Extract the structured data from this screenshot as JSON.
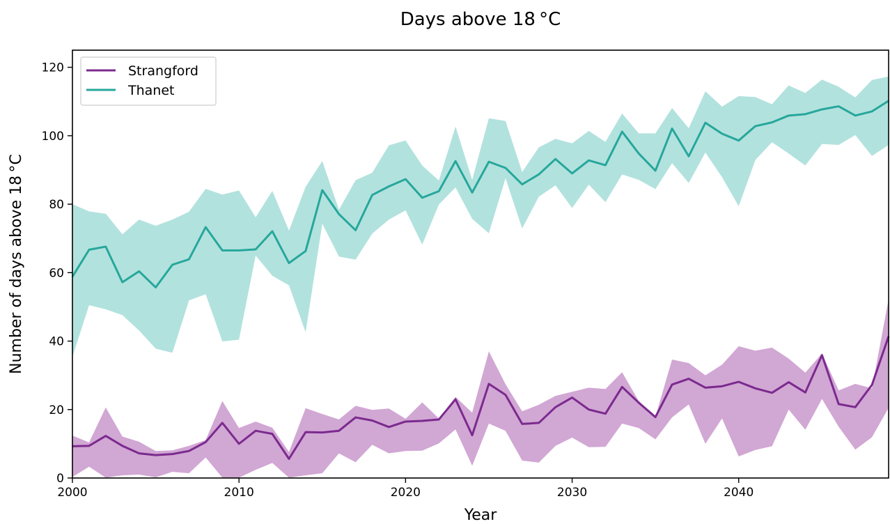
{
  "chart_data": {
    "type": "line",
    "title": "Days above 18 °C",
    "xlabel": "Year",
    "ylabel": "Number of days above 18 °C",
    "xlim": [
      2000,
      2049
    ],
    "ylim": [
      0,
      125
    ],
    "xticks": [
      2000,
      2010,
      2020,
      2030,
      2040
    ],
    "yticks": [
      0,
      20,
      40,
      60,
      80,
      100,
      120
    ],
    "grid": false,
    "legend_position": "upper-left",
    "x": [
      2000,
      2001,
      2002,
      2003,
      2004,
      2005,
      2006,
      2007,
      2008,
      2009,
      2010,
      2011,
      2012,
      2013,
      2014,
      2015,
      2016,
      2017,
      2018,
      2019,
      2020,
      2021,
      2022,
      2023,
      2024,
      2025,
      2026,
      2027,
      2028,
      2029,
      2030,
      2031,
      2032,
      2033,
      2034,
      2035,
      2036,
      2037,
      2038,
      2039,
      2040,
      2041,
      2042,
      2043,
      2044,
      2045,
      2046,
      2047,
      2048,
      2049
    ],
    "series": [
      {
        "name": "Strangford",
        "color": "#7b2a8e",
        "band_color": "#b26cb8",
        "values": [
          9.3,
          9.4,
          12.3,
          9.4,
          7.2,
          6.7,
          7.0,
          7.9,
          10.5,
          16.1,
          10.0,
          13.8,
          12.9,
          5.6,
          13.4,
          13.3,
          13.8,
          17.7,
          16.8,
          14.9,
          16.5,
          16.7,
          17.1,
          23.0,
          12.5,
          27.5,
          24.3,
          15.8,
          16.1,
          20.7,
          23.5,
          20.0,
          18.8,
          26.6,
          22.0,
          17.8,
          27.3,
          29.0,
          26.4,
          26.8,
          28.1,
          26.2,
          24.9,
          28.0,
          25.0,
          35.9,
          21.6,
          20.7,
          27.2,
          41.4
        ],
        "lower": [
          0.3,
          3.3,
          0.1,
          0.8,
          1.0,
          0.2,
          1.8,
          1.4,
          6.0,
          0.1,
          0.1,
          2.4,
          4.4,
          0.1,
          0.8,
          1.4,
          7.2,
          4.6,
          9.7,
          7.2,
          7.9,
          8.0,
          10.1,
          14.2,
          3.6,
          15.9,
          13.8,
          5.1,
          4.5,
          9.4,
          11.8,
          9.0,
          9.1,
          15.9,
          14.6,
          11.3,
          17.7,
          21.5,
          10.0,
          17.4,
          6.3,
          8.2,
          9.3,
          20.0,
          14.1,
          23.1,
          15.0,
          8.3,
          11.9,
          20.5
        ],
        "upper": [
          12.4,
          10.4,
          20.6,
          12.1,
          10.6,
          7.9,
          8.1,
          9.4,
          11.1,
          22.5,
          14.6,
          16.5,
          14.7,
          7.6,
          20.4,
          18.7,
          17.1,
          21.1,
          19.9,
          20.3,
          17.3,
          22.1,
          17.4,
          23.7,
          19.1,
          37.0,
          27.4,
          19.5,
          21.4,
          24.0,
          25.2,
          26.4,
          26.0,
          30.9,
          22.5,
          17.9,
          34.6,
          33.6,
          30.0,
          33.1,
          38.5,
          37.2,
          38.1,
          34.9,
          30.8,
          36.4,
          25.6,
          27.5,
          26.2,
          52.3
        ]
      },
      {
        "name": "Thanet",
        "color": "#26a79b",
        "band_color": "#7fcfc8",
        "values": [
          58.8,
          66.7,
          67.6,
          57.2,
          60.4,
          55.7,
          62.3,
          63.9,
          73.3,
          66.5,
          66.5,
          66.8,
          72.1,
          62.8,
          66.3,
          84.1,
          77.1,
          72.4,
          82.7,
          85.2,
          87.3,
          81.9,
          83.8,
          92.6,
          83.4,
          92.4,
          90.6,
          85.8,
          88.7,
          93.2,
          89.0,
          92.8,
          91.4,
          101.2,
          94.8,
          89.8,
          102.1,
          94.0,
          103.8,
          100.6,
          98.6,
          102.8,
          103.9,
          105.9,
          106.3,
          107.7,
          108.6,
          105.9,
          107.1,
          110.2
        ],
        "lower": [
          35.4,
          50.5,
          49.3,
          47.6,
          43.1,
          37.8,
          36.6,
          51.9,
          53.7,
          39.9,
          40.4,
          65.0,
          59.1,
          56.3,
          42.6,
          74.3,
          64.7,
          63.8,
          71.4,
          75.5,
          78.2,
          68.2,
          79.9,
          84.9,
          75.7,
          71.5,
          87.6,
          72.9,
          82.2,
          85.5,
          78.9,
          85.7,
          80.6,
          88.7,
          87.1,
          84.4,
          92.0,
          86.2,
          95.1,
          87.9,
          79.4,
          92.9,
          98.1,
          94.8,
          91.3,
          97.6,
          97.3,
          100.2,
          94.1,
          97.3
        ],
        "upper": [
          80.0,
          77.9,
          77.2,
          71.2,
          75.5,
          73.7,
          75.5,
          77.8,
          84.5,
          82.8,
          84.0,
          76.2,
          83.9,
          72.3,
          85.1,
          92.6,
          78.4,
          87.0,
          89.2,
          97.2,
          98.6,
          91.3,
          86.9,
          102.7,
          87.1,
          105.1,
          104.3,
          89.4,
          96.6,
          99.1,
          97.8,
          101.4,
          98.2,
          106.5,
          100.7,
          100.7,
          108.1,
          102.2,
          113.0,
          108.5,
          111.6,
          111.3,
          109.2,
          114.7,
          112.5,
          116.4,
          114.3,
          111.2,
          116.3,
          117.3
        ]
      }
    ]
  }
}
